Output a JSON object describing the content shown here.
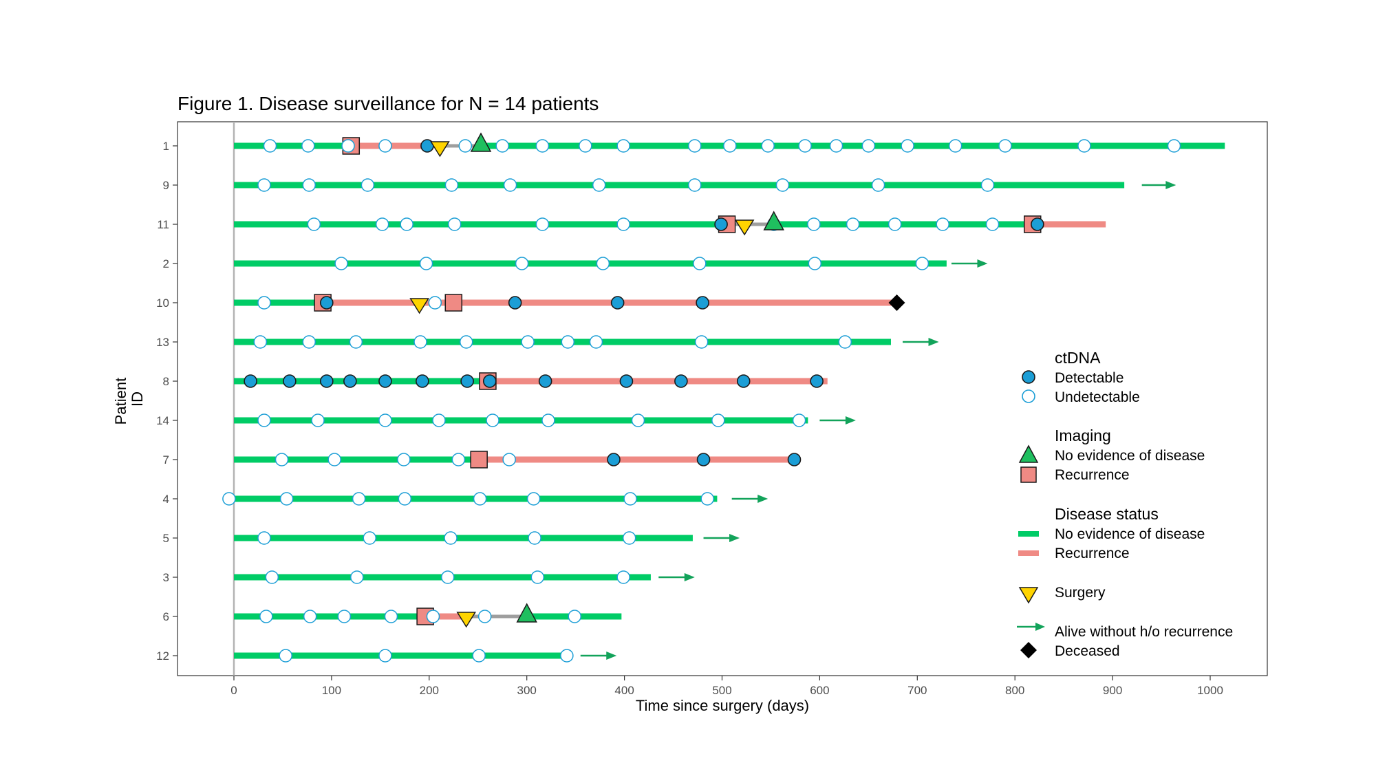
{
  "chart_data": {
    "type": "swimmer",
    "title": "Figure 1. Disease surveillance for N = 14 patients",
    "xlabel": "Time since surgery (days)",
    "ylabel": "Patient ID",
    "xlim": [
      -55,
      1065
    ],
    "xticks": [
      0,
      100,
      200,
      300,
      400,
      500,
      600,
      700,
      800,
      900,
      1000
    ],
    "grid": false,
    "legend_position": "right",
    "colors": {
      "ned": "#00CC66",
      "recurrence": "#EF8A84",
      "surgery_gap": "#9E9E9E",
      "detectable": "#1B9ED6",
      "undetectable_stroke": "#1B9ED6",
      "triangle": "#1FBF5F",
      "square": "#EF8A84",
      "surgery": "#FFD400",
      "arrow": "#12A35A",
      "deceased": "#000000",
      "zero_line": "#B3B3B3"
    },
    "legend": {
      "ctdna": {
        "title": "ctDNA",
        "detectable": "Detectable",
        "undetectable": "Undetectable"
      },
      "imaging": {
        "title": "Imaging",
        "ned": "No evidence of disease",
        "recurrence": "Recurrence"
      },
      "status": {
        "title": "Disease status",
        "ned": "No evidence of disease",
        "recurrence": "Recurrence"
      },
      "surgery": "Surgery",
      "alive": "Alive without h/o recurrence",
      "deceased": "Deceased"
    },
    "patients": [
      {
        "id": "1",
        "segments": [
          [
            0,
            120,
            "ned"
          ],
          [
            120,
            197,
            "recurrence"
          ],
          [
            197,
            255,
            "surgery_gap"
          ],
          [
            255,
            1015,
            "ned"
          ]
        ],
        "undetectable": [
          37,
          76,
          117,
          155,
          237,
          275,
          316,
          360,
          399,
          472,
          508,
          547,
          585,
          617,
          650,
          690,
          739,
          790,
          871,
          963
        ],
        "detectable": [
          198
        ],
        "img_ned": [
          253
        ],
        "img_rec": [
          120
        ],
        "surgery": [
          211
        ],
        "arrow": null,
        "deceased": null
      },
      {
        "id": "9",
        "segments": [
          [
            0,
            912,
            "ned"
          ]
        ],
        "undetectable": [
          31,
          77,
          137,
          223,
          283,
          374,
          472,
          562,
          660,
          772
        ],
        "detectable": [],
        "img_ned": [],
        "img_rec": [],
        "surgery": [],
        "arrow": [
          930,
          965
        ],
        "deceased": null
      },
      {
        "id": "11",
        "segments": [
          [
            0,
            500,
            "ned"
          ],
          [
            500,
            550,
            "surgery_gap"
          ],
          [
            550,
            810,
            "ned"
          ],
          [
            810,
            893,
            "recurrence"
          ]
        ],
        "undetectable": [
          82,
          152,
          177,
          226,
          316,
          399,
          553,
          594,
          634,
          677,
          726,
          777
        ],
        "detectable": [
          499,
          823
        ],
        "img_ned": [
          553
        ],
        "img_rec": [
          505,
          818
        ],
        "surgery": [
          523
        ],
        "arrow": null,
        "deceased": null
      },
      {
        "id": "2",
        "segments": [
          [
            0,
            730,
            "ned"
          ]
        ],
        "undetectable": [
          110,
          197,
          295,
          378,
          477,
          595,
          705
        ],
        "detectable": [],
        "img_ned": [],
        "img_rec": [],
        "surgery": [],
        "arrow": [
          735,
          772
        ],
        "deceased": null
      },
      {
        "id": "10",
        "segments": [
          [
            0,
            92,
            "ned"
          ],
          [
            92,
            678,
            "recurrence"
          ]
        ],
        "undetectable": [
          31,
          206
        ],
        "detectable": [
          95,
          288,
          393,
          480
        ],
        "img_ned": [],
        "img_rec": [
          91,
          225
        ],
        "surgery": [
          190
        ],
        "arrow": null,
        "deceased": [
          679
        ]
      },
      {
        "id": "13",
        "segments": [
          [
            0,
            673,
            "ned"
          ]
        ],
        "undetectable": [
          27,
          77,
          125,
          191,
          238,
          301,
          342,
          371,
          479,
          626
        ],
        "detectable": [],
        "img_ned": [],
        "img_rec": [],
        "surgery": [],
        "arrow": [
          685,
          722
        ],
        "deceased": null
      },
      {
        "id": "8",
        "segments": [
          [
            0,
            260,
            "ned"
          ],
          [
            260,
            608,
            "recurrence"
          ]
        ],
        "undetectable": [],
        "detectable": [
          17,
          57,
          95,
          119,
          155,
          193,
          239,
          262,
          319,
          402,
          458,
          522,
          597
        ],
        "img_ned": [],
        "img_rec": [
          260
        ],
        "surgery": [],
        "arrow": null,
        "deceased": null
      },
      {
        "id": "14",
        "segments": [
          [
            0,
            588,
            "ned"
          ]
        ],
        "undetectable": [
          31,
          86,
          155,
          210,
          265,
          322,
          414,
          496,
          579
        ],
        "detectable": [],
        "img_ned": [],
        "img_rec": [],
        "surgery": [],
        "arrow": [
          600,
          637
        ],
        "deceased": null
      },
      {
        "id": "7",
        "segments": [
          [
            0,
            250,
            "ned"
          ],
          [
            250,
            572,
            "recurrence"
          ]
        ],
        "undetectable": [
          49,
          103,
          174,
          230,
          282
        ],
        "detectable": [
          389,
          481,
          574
        ],
        "img_ned": [],
        "img_rec": [
          251
        ],
        "surgery": [],
        "arrow": null,
        "deceased": null
      },
      {
        "id": "4",
        "segments": [
          [
            0,
            495,
            "ned"
          ]
        ],
        "undetectable": [
          -5,
          54,
          128,
          175,
          252,
          307,
          406,
          485
        ],
        "detectable": [],
        "img_ned": [],
        "img_rec": [],
        "surgery": [],
        "arrow": [
          510,
          547
        ],
        "deceased": null
      },
      {
        "id": "5",
        "segments": [
          [
            0,
            470,
            "ned"
          ]
        ],
        "undetectable": [
          31,
          139,
          222,
          308,
          405
        ],
        "detectable": [],
        "img_ned": [],
        "img_rec": [],
        "surgery": [],
        "arrow": [
          481,
          518
        ],
        "deceased": null
      },
      {
        "id": "3",
        "segments": [
          [
            0,
            427,
            "ned"
          ]
        ],
        "undetectable": [
          39,
          126,
          219,
          311,
          399
        ],
        "detectable": [],
        "img_ned": [],
        "img_rec": [],
        "surgery": [],
        "arrow": [
          435,
          472
        ],
        "deceased": null
      },
      {
        "id": "6",
        "segments": [
          [
            0,
            195,
            "ned"
          ],
          [
            195,
            237,
            "recurrence"
          ],
          [
            237,
            300,
            "surgery_gap"
          ],
          [
            300,
            397,
            "ned"
          ]
        ],
        "undetectable": [
          33,
          78,
          113,
          161,
          204,
          257,
          349
        ],
        "detectable": [],
        "img_ned": [
          300
        ],
        "img_rec": [
          196
        ],
        "surgery": [
          238
        ],
        "arrow": null,
        "deceased": null
      },
      {
        "id": "12",
        "segments": [
          [
            0,
            343,
            "ned"
          ]
        ],
        "undetectable": [
          53,
          155,
          251,
          341
        ],
        "detectable": [],
        "img_ned": [],
        "img_rec": [],
        "surgery": [],
        "arrow": [
          355,
          392
        ],
        "deceased": null
      }
    ]
  }
}
